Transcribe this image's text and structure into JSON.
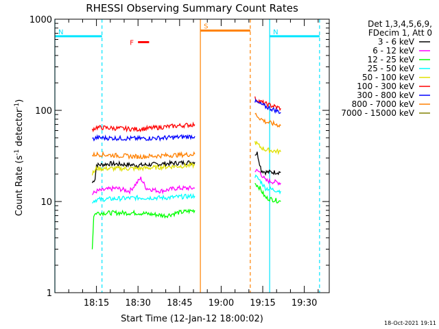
{
  "chart_data": {
    "type": "line",
    "title": "RHESSI Observing Summary Count Rates",
    "xlabel": "Start Time (12-Jan-12 18:00:02)",
    "ylabel_main": "Count Rate (s",
    "ylabel_sup1": "-1",
    "ylabel_mid": " detector",
    "ylabel_sup2": "-1",
    "ylabel_end": ")",
    "yscale": "log",
    "ylim": [
      1,
      1000
    ],
    "xlim_minutes": [
      0,
      99
    ],
    "x_ticks": [
      {
        "minute": 15,
        "label": "18:15"
      },
      {
        "minute": 30,
        "label": "18:30"
      },
      {
        "minute": 45,
        "label": "18:45"
      },
      {
        "minute": 60,
        "label": "19:00"
      },
      {
        "minute": 75,
        "label": "19:15"
      },
      {
        "minute": 90,
        "label": "19:30"
      }
    ],
    "y_ticks": [
      {
        "value": 1,
        "label": "1"
      },
      {
        "value": 10,
        "label": "10"
      },
      {
        "value": 100,
        "label": "100"
      },
      {
        "value": 1000,
        "label": "1000"
      }
    ],
    "legend_header": [
      "Det 1,3,4,5,6,9,",
      "FDecim 1, Att 0"
    ],
    "series": [
      {
        "name": "3 - 6 keV",
        "color": "#000000",
        "segments": [
          [
            [
              13.5,
              16
            ],
            [
              14.5,
              18
            ],
            [
              15,
              25
            ],
            [
              20,
              26
            ],
            [
              30,
              25
            ],
            [
              40,
              26
            ],
            [
              50.5,
              27
            ]
          ],
          [
            [
              72.2,
              33
            ],
            [
              73,
              34
            ],
            [
              74.5,
              22
            ],
            [
              76,
              21
            ],
            [
              81.5,
              21
            ]
          ]
        ]
      },
      {
        "name": "6 - 12 keV",
        "color": "#ff00ff",
        "segments": [
          [
            [
              13.5,
              12
            ],
            [
              15,
              13
            ],
            [
              22,
              14
            ],
            [
              27,
              13
            ],
            [
              31,
              18
            ],
            [
              33,
              14
            ],
            [
              38,
              13
            ],
            [
              44,
              14
            ],
            [
              50.5,
              14
            ]
          ],
          [
            [
              72.2,
              22
            ],
            [
              74,
              21
            ],
            [
              76,
              17
            ],
            [
              81.5,
              16
            ]
          ]
        ]
      },
      {
        "name": "12 - 25 keV",
        "color": "#00ff00",
        "segments": [
          [
            [
              13.5,
              3
            ],
            [
              14,
              7
            ],
            [
              15,
              7.5
            ],
            [
              30,
              7.5
            ],
            [
              40,
              7
            ],
            [
              44,
              7.5
            ],
            [
              50.5,
              8
            ]
          ],
          [
            [
              72.2,
              16
            ],
            [
              74,
              14
            ],
            [
              76,
              11
            ],
            [
              81.5,
              10
            ]
          ]
        ]
      },
      {
        "name": "25 - 50 keV",
        "color": "#00ffff",
        "segments": [
          [
            [
              13.5,
              10
            ],
            [
              15,
              10.5
            ],
            [
              30,
              11
            ],
            [
              40,
              11
            ],
            [
              50.5,
              11.5
            ]
          ],
          [
            [
              72.2,
              19
            ],
            [
              74,
              17
            ],
            [
              76,
              14
            ],
            [
              81.5,
              13
            ]
          ]
        ]
      },
      {
        "name": "50 - 100 keV",
        "color": "#e0e000",
        "segments": [
          [
            [
              13.5,
              20
            ],
            [
              15,
              23
            ],
            [
              30,
              23
            ],
            [
              40,
              24
            ],
            [
              50.5,
              25
            ]
          ],
          [
            [
              72.2,
              45
            ],
            [
              74,
              40
            ],
            [
              76,
              37
            ],
            [
              81.5,
              35
            ]
          ]
        ]
      },
      {
        "name": "100 - 300 keV",
        "color": "#ff0000",
        "segments": [
          [
            [
              13.5,
              62
            ],
            [
              15,
              65
            ],
            [
              30,
              62
            ],
            [
              40,
              66
            ],
            [
              50.5,
              70
            ]
          ],
          [
            [
              72.2,
              135
            ],
            [
              74,
              125
            ],
            [
              76,
              118
            ],
            [
              81.5,
              105
            ]
          ]
        ]
      },
      {
        "name": "300 - 800 keV",
        "color": "#0000ff",
        "segments": [
          [
            [
              13.5,
              48
            ],
            [
              15,
              50
            ],
            [
              30,
              49
            ],
            [
              40,
              50
            ],
            [
              50.5,
              52
            ]
          ],
          [
            [
              72.2,
              125
            ],
            [
              74,
              118
            ],
            [
              76,
              110
            ],
            [
              81.5,
              95
            ]
          ]
        ]
      },
      {
        "name": "800 - 7000 keV",
        "color": "#ff8000",
        "segments": [
          [
            [
              13.5,
              32
            ],
            [
              15,
              33
            ],
            [
              30,
              31
            ],
            [
              40,
              32
            ],
            [
              50.5,
              33
            ]
          ],
          [
            [
              72.2,
              92
            ],
            [
              74,
              82
            ],
            [
              76,
              75
            ],
            [
              81.5,
              68
            ]
          ]
        ]
      },
      {
        "name": "7000 - 15000 keV",
        "color": "#808000",
        "segments": []
      }
    ],
    "flag_lines": [
      {
        "label": "N",
        "color": "#00e5ff",
        "x": [
          0,
          17
        ],
        "y": 650
      },
      {
        "label": "N",
        "color": "#00e5ff",
        "x": [
          77.5,
          95.5
        ],
        "y": 650
      },
      {
        "label": "F",
        "color": "#ff0000",
        "x": [
          30,
          34
        ],
        "y": 560
      },
      {
        "label": "S",
        "color": "#ff8000",
        "x": [
          52.5,
          70.5
        ],
        "y": 750
      }
    ],
    "vertical_markers": [
      {
        "minute": 0,
        "color": "#00e5ff",
        "style": "solid"
      },
      {
        "minute": 17,
        "color": "#00e5ff",
        "style": "dashed"
      },
      {
        "minute": 52.5,
        "color": "#ff8000",
        "style": "solid"
      },
      {
        "minute": 70.5,
        "color": "#ff8000",
        "style": "dashed"
      },
      {
        "minute": 77.5,
        "color": "#00e5ff",
        "style": "solid"
      },
      {
        "minute": 95.5,
        "color": "#00e5ff",
        "style": "dashed"
      }
    ]
  },
  "footer_date": "18-Oct-2021 19:11"
}
